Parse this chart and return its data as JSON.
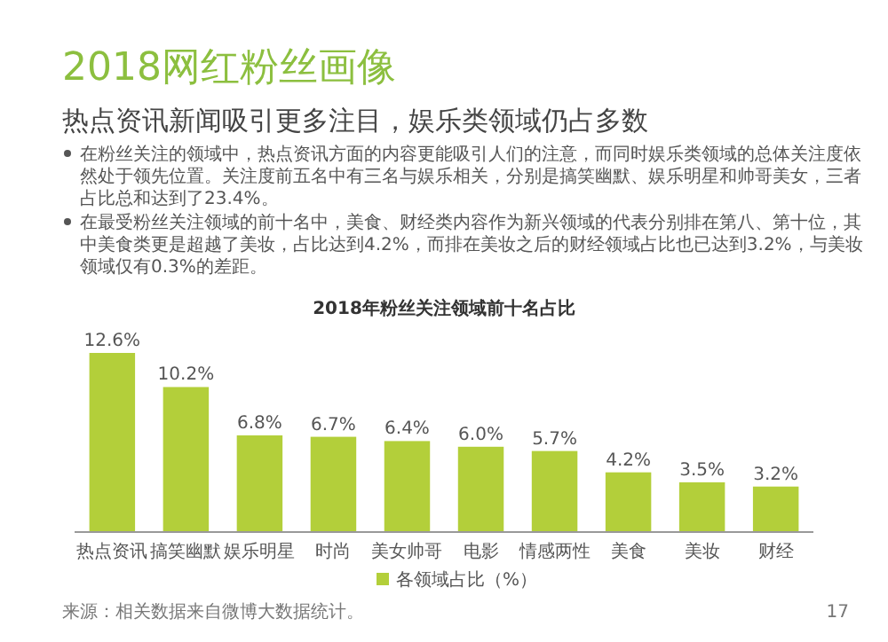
{
  "chart_data": {
    "type": "bar",
    "title": "2018网红粉丝画像",
    "subtitle": "热点资讯新闻吸引更多注目，娱乐类领域仍占多数",
    "annotations": [
      "在粉丝关注的领域中，热点资讯方面的内容更能吸引人们的注意，而同时娱乐类领域的总体关注度依然处于领先位置。关注度前五名中有三名与娱乐相关，分别是搞笑幽默、娱乐明星和帅哥美女，三者占比总和达到了23.4%。",
      "在最受粉丝关注领域的前十名中，美食、财经类内容作为新兴领域的代表分别排在第八、第十位，其中美食类更是超越了美妆，占比达到4.2%，而排在美妆之后的财经领域占比也已达到3.2%，与美妆领域仅有0.3%的差距。",
      "2018年粉丝关注领域前十名占比",
      "来源：相关数据来自微博大数据统计。",
      "17"
    ],
    "categories": [
      "热点资讯",
      "搞笑幽默",
      "娱乐明星",
      "时尚",
      "美女帅哥",
      "电影",
      "情感两性",
      "美食",
      "美妆",
      "财经"
    ],
    "series": [
      {
        "name": "各领域占比（%）",
        "color": "#b3cf3a",
        "values": [
          12.6,
          10.2,
          6.8,
          6.7,
          6.4,
          6.0,
          5.7,
          4.2,
          3.5,
          3.2
        ],
        "value_labels": [
          "12.6%",
          "10.2%",
          "6.8%",
          "6.7%",
          "6.4%",
          "6.0%",
          "5.7%",
          "4.2%",
          "3.5%",
          "3.2%"
        ]
      }
    ],
    "legend": "bottom"
  }
}
